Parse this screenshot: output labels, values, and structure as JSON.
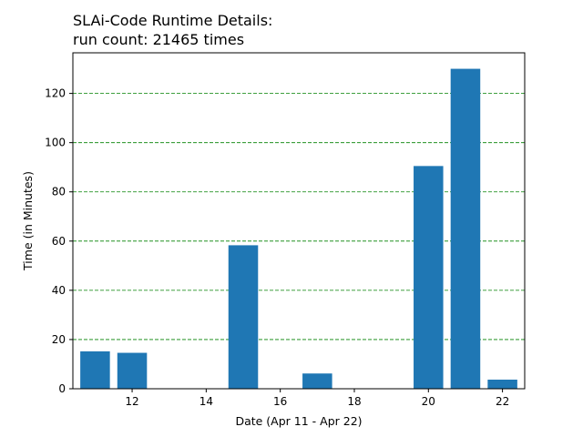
{
  "chart_data": {
    "type": "bar",
    "title_lines": [
      "SLAi-Code Runtime Details:",
      "run count: 21465 times"
    ],
    "xlabel": "Date (Apr 11 - Apr 22)",
    "ylabel": "Time (in Minutes)",
    "x": [
      11,
      12,
      13,
      14,
      15,
      16,
      17,
      18,
      19,
      20,
      21,
      22
    ],
    "values": [
      15.2,
      14.6,
      0,
      0,
      58.3,
      0,
      6.2,
      0,
      0,
      90.5,
      130,
      3.7
    ],
    "xlim": [
      10.4,
      22.6
    ],
    "ylim": [
      0,
      136.5
    ],
    "xticks": [
      12,
      14,
      16,
      18,
      20,
      22
    ],
    "yticks": [
      0,
      20,
      40,
      60,
      80,
      100,
      120
    ],
    "grid": "horizontal dashed at y ticks",
    "bar_color": "#1f77b4",
    "grid_color": "#008000"
  }
}
